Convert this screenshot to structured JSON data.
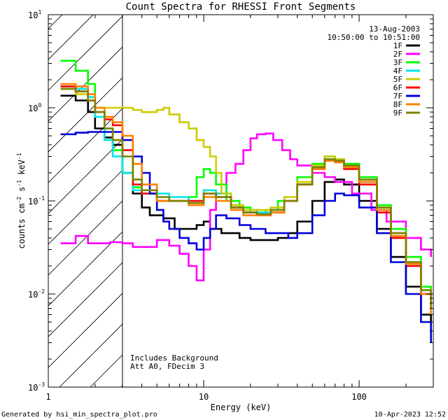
{
  "chart_data": {
    "type": "line",
    "title": "Count Spectra for RHESSI Front Segments",
    "xlabel": "Energy (keV)",
    "ylabel_parts": {
      "main": "counts cm",
      "sup1": "-2",
      "mid": " s",
      "sup2": "-1",
      "tail": " keV",
      "sup3": "-1"
    },
    "xscale": "log",
    "yscale": "log",
    "xlim": [
      1,
      300
    ],
    "ylim": [
      0.001,
      10
    ],
    "x_tick_labels": [
      {
        "value": 1,
        "label": "1"
      },
      {
        "value": 10,
        "label": "10"
      },
      {
        "value": 100,
        "label": "100"
      }
    ],
    "y_tick_labels": [
      {
        "exp": -3,
        "base": "10",
        "sup": "-3"
      },
      {
        "exp": -2,
        "base": "10",
        "sup": "-2"
      },
      {
        "exp": -1,
        "base": "10",
        "sup": "-1"
      },
      {
        "exp": 0,
        "base": "10",
        "sup": "0"
      },
      {
        "exp": 1,
        "base": "10",
        "sup": "1"
      }
    ],
    "hatched_region": [
      1,
      3
    ],
    "legend_header": {
      "date": "13-Aug-2003",
      "time_range": "10:50:00 to 10:51:00"
    },
    "annotations": [
      "Includes Background",
      "Att A0, FDecim 3"
    ],
    "series": [
      {
        "name": "1F",
        "color": "#000000",
        "points": [
          [
            1.2,
            1.35
          ],
          [
            1.5,
            1.2
          ],
          [
            1.8,
            0.9
          ],
          [
            2.0,
            0.6
          ],
          [
            2.3,
            0.48
          ],
          [
            2.6,
            0.4
          ],
          [
            3.0,
            0.2
          ],
          [
            3.5,
            0.12
          ],
          [
            4.0,
            0.085
          ],
          [
            4.5,
            0.07
          ],
          [
            5.5,
            0.065
          ],
          [
            6.5,
            0.05
          ],
          [
            7.5,
            0.05
          ],
          [
            9,
            0.055
          ],
          [
            10,
            0.06
          ],
          [
            11,
            0.05
          ],
          [
            13,
            0.045
          ],
          [
            15,
            0.045
          ],
          [
            17,
            0.04
          ],
          [
            20,
            0.038
          ],
          [
            25,
            0.038
          ],
          [
            30,
            0.04
          ],
          [
            35,
            0.045
          ],
          [
            40,
            0.06
          ],
          [
            50,
            0.1
          ],
          [
            60,
            0.16
          ],
          [
            70,
            0.17
          ],
          [
            80,
            0.15
          ],
          [
            100,
            0.1
          ],
          [
            130,
            0.05
          ],
          [
            160,
            0.025
          ],
          [
            200,
            0.012
          ],
          [
            250,
            0.006
          ],
          [
            290,
            0.004
          ]
        ]
      },
      {
        "name": "2F",
        "color": "#ff00ff",
        "points": [
          [
            1.2,
            0.035
          ],
          [
            1.5,
            0.042
          ],
          [
            1.8,
            0.035
          ],
          [
            2.5,
            0.036
          ],
          [
            3,
            0.035
          ],
          [
            3.5,
            0.032
          ],
          [
            4,
            0.032
          ],
          [
            5,
            0.038
          ],
          [
            6,
            0.033
          ],
          [
            7,
            0.027
          ],
          [
            8,
            0.02
          ],
          [
            9,
            0.014
          ],
          [
            10,
            0.03
          ],
          [
            11,
            0.08
          ],
          [
            12,
            0.12
          ],
          [
            14,
            0.2
          ],
          [
            16,
            0.25
          ],
          [
            18,
            0.35
          ],
          [
            20,
            0.47
          ],
          [
            22,
            0.52
          ],
          [
            25,
            0.53
          ],
          [
            28,
            0.45
          ],
          [
            32,
            0.35
          ],
          [
            36,
            0.28
          ],
          [
            40,
            0.24
          ],
          [
            50,
            0.2
          ],
          [
            60,
            0.18
          ],
          [
            70,
            0.16
          ],
          [
            90,
            0.12
          ],
          [
            120,
            0.08
          ],
          [
            150,
            0.06
          ],
          [
            200,
            0.04
          ],
          [
            250,
            0.03
          ],
          [
            290,
            0.025
          ]
        ]
      },
      {
        "name": "3F",
        "color": "#00ff00",
        "points": [
          [
            1.2,
            3.2
          ],
          [
            1.5,
            2.5
          ],
          [
            1.8,
            1.8
          ],
          [
            2.0,
            1.0
          ],
          [
            2.3,
            0.6
          ],
          [
            2.6,
            0.35
          ],
          [
            3.0,
            0.2
          ],
          [
            3.5,
            0.14
          ],
          [
            4.0,
            0.12
          ],
          [
            5,
            0.1
          ],
          [
            6,
            0.1
          ],
          [
            8,
            0.11
          ],
          [
            9,
            0.18
          ],
          [
            10,
            0.22
          ],
          [
            11,
            0.2
          ],
          [
            12,
            0.15
          ],
          [
            14,
            0.1
          ],
          [
            17,
            0.085
          ],
          [
            20,
            0.075
          ],
          [
            25,
            0.08
          ],
          [
            30,
            0.1
          ],
          [
            40,
            0.18
          ],
          [
            50,
            0.25
          ],
          [
            60,
            0.3
          ],
          [
            70,
            0.28
          ],
          [
            80,
            0.25
          ],
          [
            100,
            0.18
          ],
          [
            130,
            0.09
          ],
          [
            160,
            0.05
          ],
          [
            200,
            0.025
          ],
          [
            250,
            0.012
          ],
          [
            290,
            0.008
          ]
        ]
      },
      {
        "name": "4F",
        "color": "#00e5e5",
        "points": [
          [
            1.2,
            1.7
          ],
          [
            1.5,
            1.6
          ],
          [
            1.8,
            1.3
          ],
          [
            2.0,
            0.8
          ],
          [
            2.3,
            0.45
          ],
          [
            2.6,
            0.3
          ],
          [
            3.0,
            0.2
          ],
          [
            3.5,
            0.13
          ],
          [
            4,
            0.12
          ],
          [
            5,
            0.12
          ],
          [
            6,
            0.11
          ],
          [
            8,
            0.1
          ],
          [
            10,
            0.13
          ],
          [
            12,
            0.12
          ],
          [
            15,
            0.09
          ],
          [
            18,
            0.08
          ],
          [
            22,
            0.075
          ],
          [
            27,
            0.08
          ],
          [
            33,
            0.1
          ],
          [
            40,
            0.15
          ],
          [
            50,
            0.23
          ],
          [
            60,
            0.28
          ],
          [
            70,
            0.26
          ],
          [
            80,
            0.23
          ],
          [
            100,
            0.16
          ],
          [
            130,
            0.08
          ],
          [
            160,
            0.045
          ],
          [
            200,
            0.022
          ],
          [
            250,
            0.011
          ],
          [
            290,
            0.007
          ]
        ]
      },
      {
        "name": "5F",
        "color": "#cccc00",
        "points": [
          [
            1.2,
            1.6
          ],
          [
            1.5,
            1.4
          ],
          [
            1.8,
            1.2
          ],
          [
            2.0,
            1.0
          ],
          [
            2.5,
            1.0
          ],
          [
            3.0,
            1.0
          ],
          [
            3.5,
            0.95
          ],
          [
            4,
            0.9
          ],
          [
            5,
            0.95
          ],
          [
            5.5,
            1.0
          ],
          [
            6,
            0.85
          ],
          [
            7,
            0.7
          ],
          [
            8,
            0.6
          ],
          [
            9,
            0.45
          ],
          [
            10,
            0.38
          ],
          [
            11,
            0.3
          ],
          [
            12,
            0.2
          ],
          [
            13,
            0.12
          ],
          [
            15,
            0.09
          ],
          [
            18,
            0.08
          ],
          [
            22,
            0.08
          ],
          [
            27,
            0.085
          ],
          [
            33,
            0.11
          ],
          [
            40,
            0.16
          ],
          [
            50,
            0.24
          ],
          [
            60,
            0.3
          ],
          [
            70,
            0.28
          ],
          [
            80,
            0.24
          ],
          [
            100,
            0.17
          ],
          [
            130,
            0.085
          ],
          [
            160,
            0.045
          ],
          [
            200,
            0.022
          ],
          [
            250,
            0.011
          ],
          [
            290,
            0.007
          ]
        ]
      },
      {
        "name": "6F",
        "color": "#ff0000",
        "points": [
          [
            1.2,
            1.7
          ],
          [
            1.5,
            1.5
          ],
          [
            1.8,
            1.2
          ],
          [
            2.0,
            0.9
          ],
          [
            2.3,
            0.75
          ],
          [
            2.6,
            0.65
          ],
          [
            3.0,
            0.35
          ],
          [
            3.5,
            0.15
          ],
          [
            4,
            0.12
          ],
          [
            5,
            0.1
          ],
          [
            6,
            0.1
          ],
          [
            8,
            0.1
          ],
          [
            10,
            0.12
          ],
          [
            12,
            0.11
          ],
          [
            15,
            0.085
          ],
          [
            18,
            0.075
          ],
          [
            22,
            0.07
          ],
          [
            27,
            0.075
          ],
          [
            33,
            0.1
          ],
          [
            40,
            0.15
          ],
          [
            50,
            0.22
          ],
          [
            60,
            0.27
          ],
          [
            70,
            0.26
          ],
          [
            80,
            0.22
          ],
          [
            100,
            0.15
          ],
          [
            130,
            0.075
          ],
          [
            160,
            0.04
          ],
          [
            200,
            0.02
          ],
          [
            250,
            0.01
          ],
          [
            290,
            0.006
          ]
        ]
      },
      {
        "name": "7F",
        "color": "#0000dd",
        "points": [
          [
            1.2,
            0.52
          ],
          [
            1.5,
            0.54
          ],
          [
            1.8,
            0.55
          ],
          [
            2.0,
            0.55
          ],
          [
            2.5,
            0.55
          ],
          [
            3.0,
            0.45
          ],
          [
            3.5,
            0.3
          ],
          [
            4,
            0.2
          ],
          [
            4.5,
            0.12
          ],
          [
            5,
            0.08
          ],
          [
            5.5,
            0.06
          ],
          [
            6,
            0.05
          ],
          [
            7,
            0.04
          ],
          [
            8,
            0.035
          ],
          [
            9,
            0.03
          ],
          [
            10,
            0.04
          ],
          [
            11,
            0.05
          ],
          [
            12,
            0.07
          ],
          [
            14,
            0.065
          ],
          [
            17,
            0.055
          ],
          [
            20,
            0.05
          ],
          [
            25,
            0.045
          ],
          [
            30,
            0.045
          ],
          [
            35,
            0.04
          ],
          [
            40,
            0.045
          ],
          [
            50,
            0.07
          ],
          [
            60,
            0.1
          ],
          [
            70,
            0.12
          ],
          [
            80,
            0.115
          ],
          [
            100,
            0.085
          ],
          [
            130,
            0.045
          ],
          [
            160,
            0.022
          ],
          [
            200,
            0.01
          ],
          [
            250,
            0.005
          ],
          [
            290,
            0.003
          ]
        ]
      },
      {
        "name": "8F",
        "color": "#ff8000",
        "points": [
          [
            1.2,
            1.8
          ],
          [
            1.5,
            1.7
          ],
          [
            1.8,
            1.4
          ],
          [
            2.0,
            1.0
          ],
          [
            2.3,
            0.8
          ],
          [
            2.6,
            0.7
          ],
          [
            3.0,
            0.5
          ],
          [
            3.5,
            0.25
          ],
          [
            4,
            0.15
          ],
          [
            5,
            0.1
          ],
          [
            6,
            0.1
          ],
          [
            8,
            0.09
          ],
          [
            10,
            0.11
          ],
          [
            12,
            0.1
          ],
          [
            15,
            0.08
          ],
          [
            18,
            0.07
          ],
          [
            22,
            0.07
          ],
          [
            27,
            0.075
          ],
          [
            33,
            0.1
          ],
          [
            40,
            0.15
          ],
          [
            50,
            0.22
          ],
          [
            60,
            0.27
          ],
          [
            70,
            0.26
          ],
          [
            80,
            0.23
          ],
          [
            100,
            0.16
          ],
          [
            130,
            0.08
          ],
          [
            160,
            0.042
          ],
          [
            200,
            0.021
          ],
          [
            250,
            0.01
          ],
          [
            290,
            0.006
          ]
        ]
      },
      {
        "name": "9F",
        "color": "#808000",
        "points": [
          [
            1.2,
            1.6
          ],
          [
            1.5,
            1.5
          ],
          [
            1.8,
            1.2
          ],
          [
            2.0,
            0.9
          ],
          [
            2.3,
            0.6
          ],
          [
            2.6,
            0.45
          ],
          [
            3.0,
            0.3
          ],
          [
            3.5,
            0.17
          ],
          [
            4,
            0.13
          ],
          [
            5,
            0.11
          ],
          [
            6,
            0.1
          ],
          [
            8,
            0.095
          ],
          [
            10,
            0.12
          ],
          [
            12,
            0.11
          ],
          [
            15,
            0.085
          ],
          [
            18,
            0.075
          ],
          [
            22,
            0.072
          ],
          [
            27,
            0.08
          ],
          [
            33,
            0.1
          ],
          [
            40,
            0.15
          ],
          [
            50,
            0.23
          ],
          [
            60,
            0.28
          ],
          [
            70,
            0.27
          ],
          [
            80,
            0.24
          ],
          [
            100,
            0.17
          ],
          [
            130,
            0.085
          ],
          [
            160,
            0.045
          ],
          [
            200,
            0.022
          ],
          [
            250,
            0.011
          ],
          [
            290,
            0.007
          ]
        ]
      }
    ]
  },
  "footer": {
    "generator": "Generated by hsi_min_spectra_plot.pro",
    "timestamp": "10-Apr-2023 12:52"
  }
}
